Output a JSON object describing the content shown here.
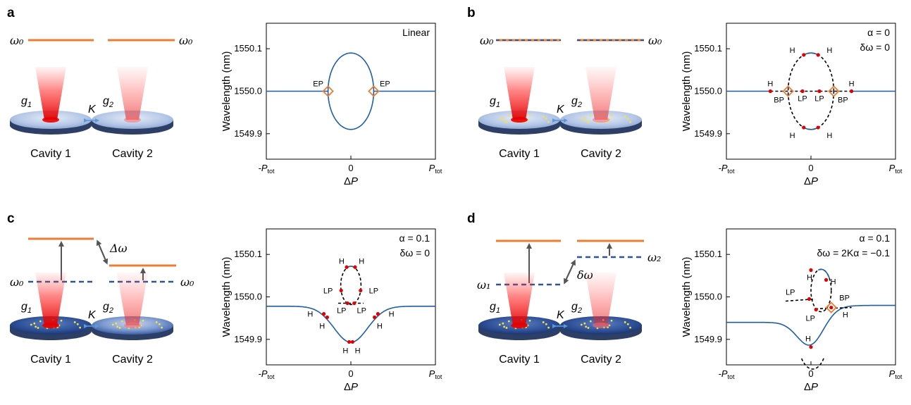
{
  "panels": [
    {
      "id": "a",
      "label": "a",
      "cavity_labels": [
        "Cavity 1",
        "Cavity 2"
      ],
      "gain_labels": [
        "g",
        "g"
      ],
      "gain_subs": [
        "1",
        "2"
      ],
      "coupling": "K",
      "level_left": "ω₀",
      "level_right": "ω₀",
      "params": [
        "Linear"
      ],
      "chart_data": {
        "type": "line",
        "xlabel": "ΔP",
        "ylabel": "Wavelength (nm)",
        "x_ticks": [
          "-P",
          "0",
          "P"
        ],
        "x_tick_sub": "tot",
        "y_ticks": [
          1550.1,
          1550.0,
          1549.9
        ],
        "ylim": [
          1549.84,
          1550.16
        ],
        "annotations": [
          "EP",
          "EP"
        ]
      }
    },
    {
      "id": "b",
      "label": "b",
      "cavity_labels": [
        "Cavity 1",
        "Cavity 2"
      ],
      "gain_labels": [
        "g",
        "g"
      ],
      "gain_subs": [
        "1",
        "2"
      ],
      "coupling": "K",
      "level_left": "ω₀",
      "level_right": "ω₀",
      "params": [
        "α = 0",
        "δω = 0"
      ],
      "chart_data": {
        "type": "line",
        "xlabel": "ΔP",
        "ylabel": "Wavelength (nm)",
        "x_ticks": [
          "-P",
          "0",
          "P"
        ],
        "x_tick_sub": "tot",
        "y_ticks": [
          1550.1,
          1550.0,
          1549.9
        ],
        "ylim": [
          1549.84,
          1550.16
        ],
        "annotations": [
          "H",
          "H",
          "H",
          "H",
          "H",
          "H",
          "LP",
          "LP",
          "BP",
          "BP"
        ]
      }
    },
    {
      "id": "c",
      "label": "c",
      "cavity_labels": [
        "Cavity 1",
        "Cavity 2"
      ],
      "gain_labels": [
        "g",
        "g"
      ],
      "gain_subs": [
        "1",
        "2"
      ],
      "coupling": "K",
      "level_left": "ω₀",
      "level_right": "ω₀",
      "shift_label": "Δω",
      "params": [
        "α = 0.1",
        "δω = 0"
      ],
      "chart_data": {
        "type": "line",
        "xlabel": "ΔP",
        "ylabel": "Wavelength (nm)",
        "x_ticks": [
          "-P",
          "0",
          "P"
        ],
        "x_tick_sub": "tot",
        "y_ticks": [
          1550.1,
          1550.0,
          1549.9
        ],
        "ylim": [
          1549.84,
          1550.16
        ],
        "annotations": [
          "H",
          "H",
          "LP",
          "LP",
          "LP",
          "LP",
          "H",
          "H",
          "H",
          "H",
          "H",
          "H"
        ]
      }
    },
    {
      "id": "d",
      "label": "d",
      "cavity_labels": [
        "Cavity 1",
        "Cavity 2"
      ],
      "gain_labels": [
        "g",
        "g"
      ],
      "gain_subs": [
        "1",
        "2"
      ],
      "coupling": "K",
      "level_left": "ω₁",
      "level_right": "ω₂",
      "shift_label": "δω",
      "params": [
        "α = 0.1",
        "δω = 2Kα = −0.1"
      ],
      "chart_data": {
        "type": "line",
        "xlabel": "ΔP",
        "ylabel": "Wavelength (nm)",
        "x_ticks": [
          "-P",
          "0",
          "P"
        ],
        "x_tick_sub": "tot",
        "y_ticks": [
          1550.1,
          1550.0,
          1549.9
        ],
        "ylim": [
          1549.84,
          1550.16
        ],
        "annotations": [
          "H",
          "H",
          "LP",
          "BP",
          "LP",
          "H",
          "H"
        ]
      }
    }
  ],
  "colors": {
    "level": "#ed7d31",
    "dashed_level": "#2f5597",
    "curve": "#1f5fa6",
    "ep_marker": "#ed7d31",
    "point": "#e00000"
  }
}
